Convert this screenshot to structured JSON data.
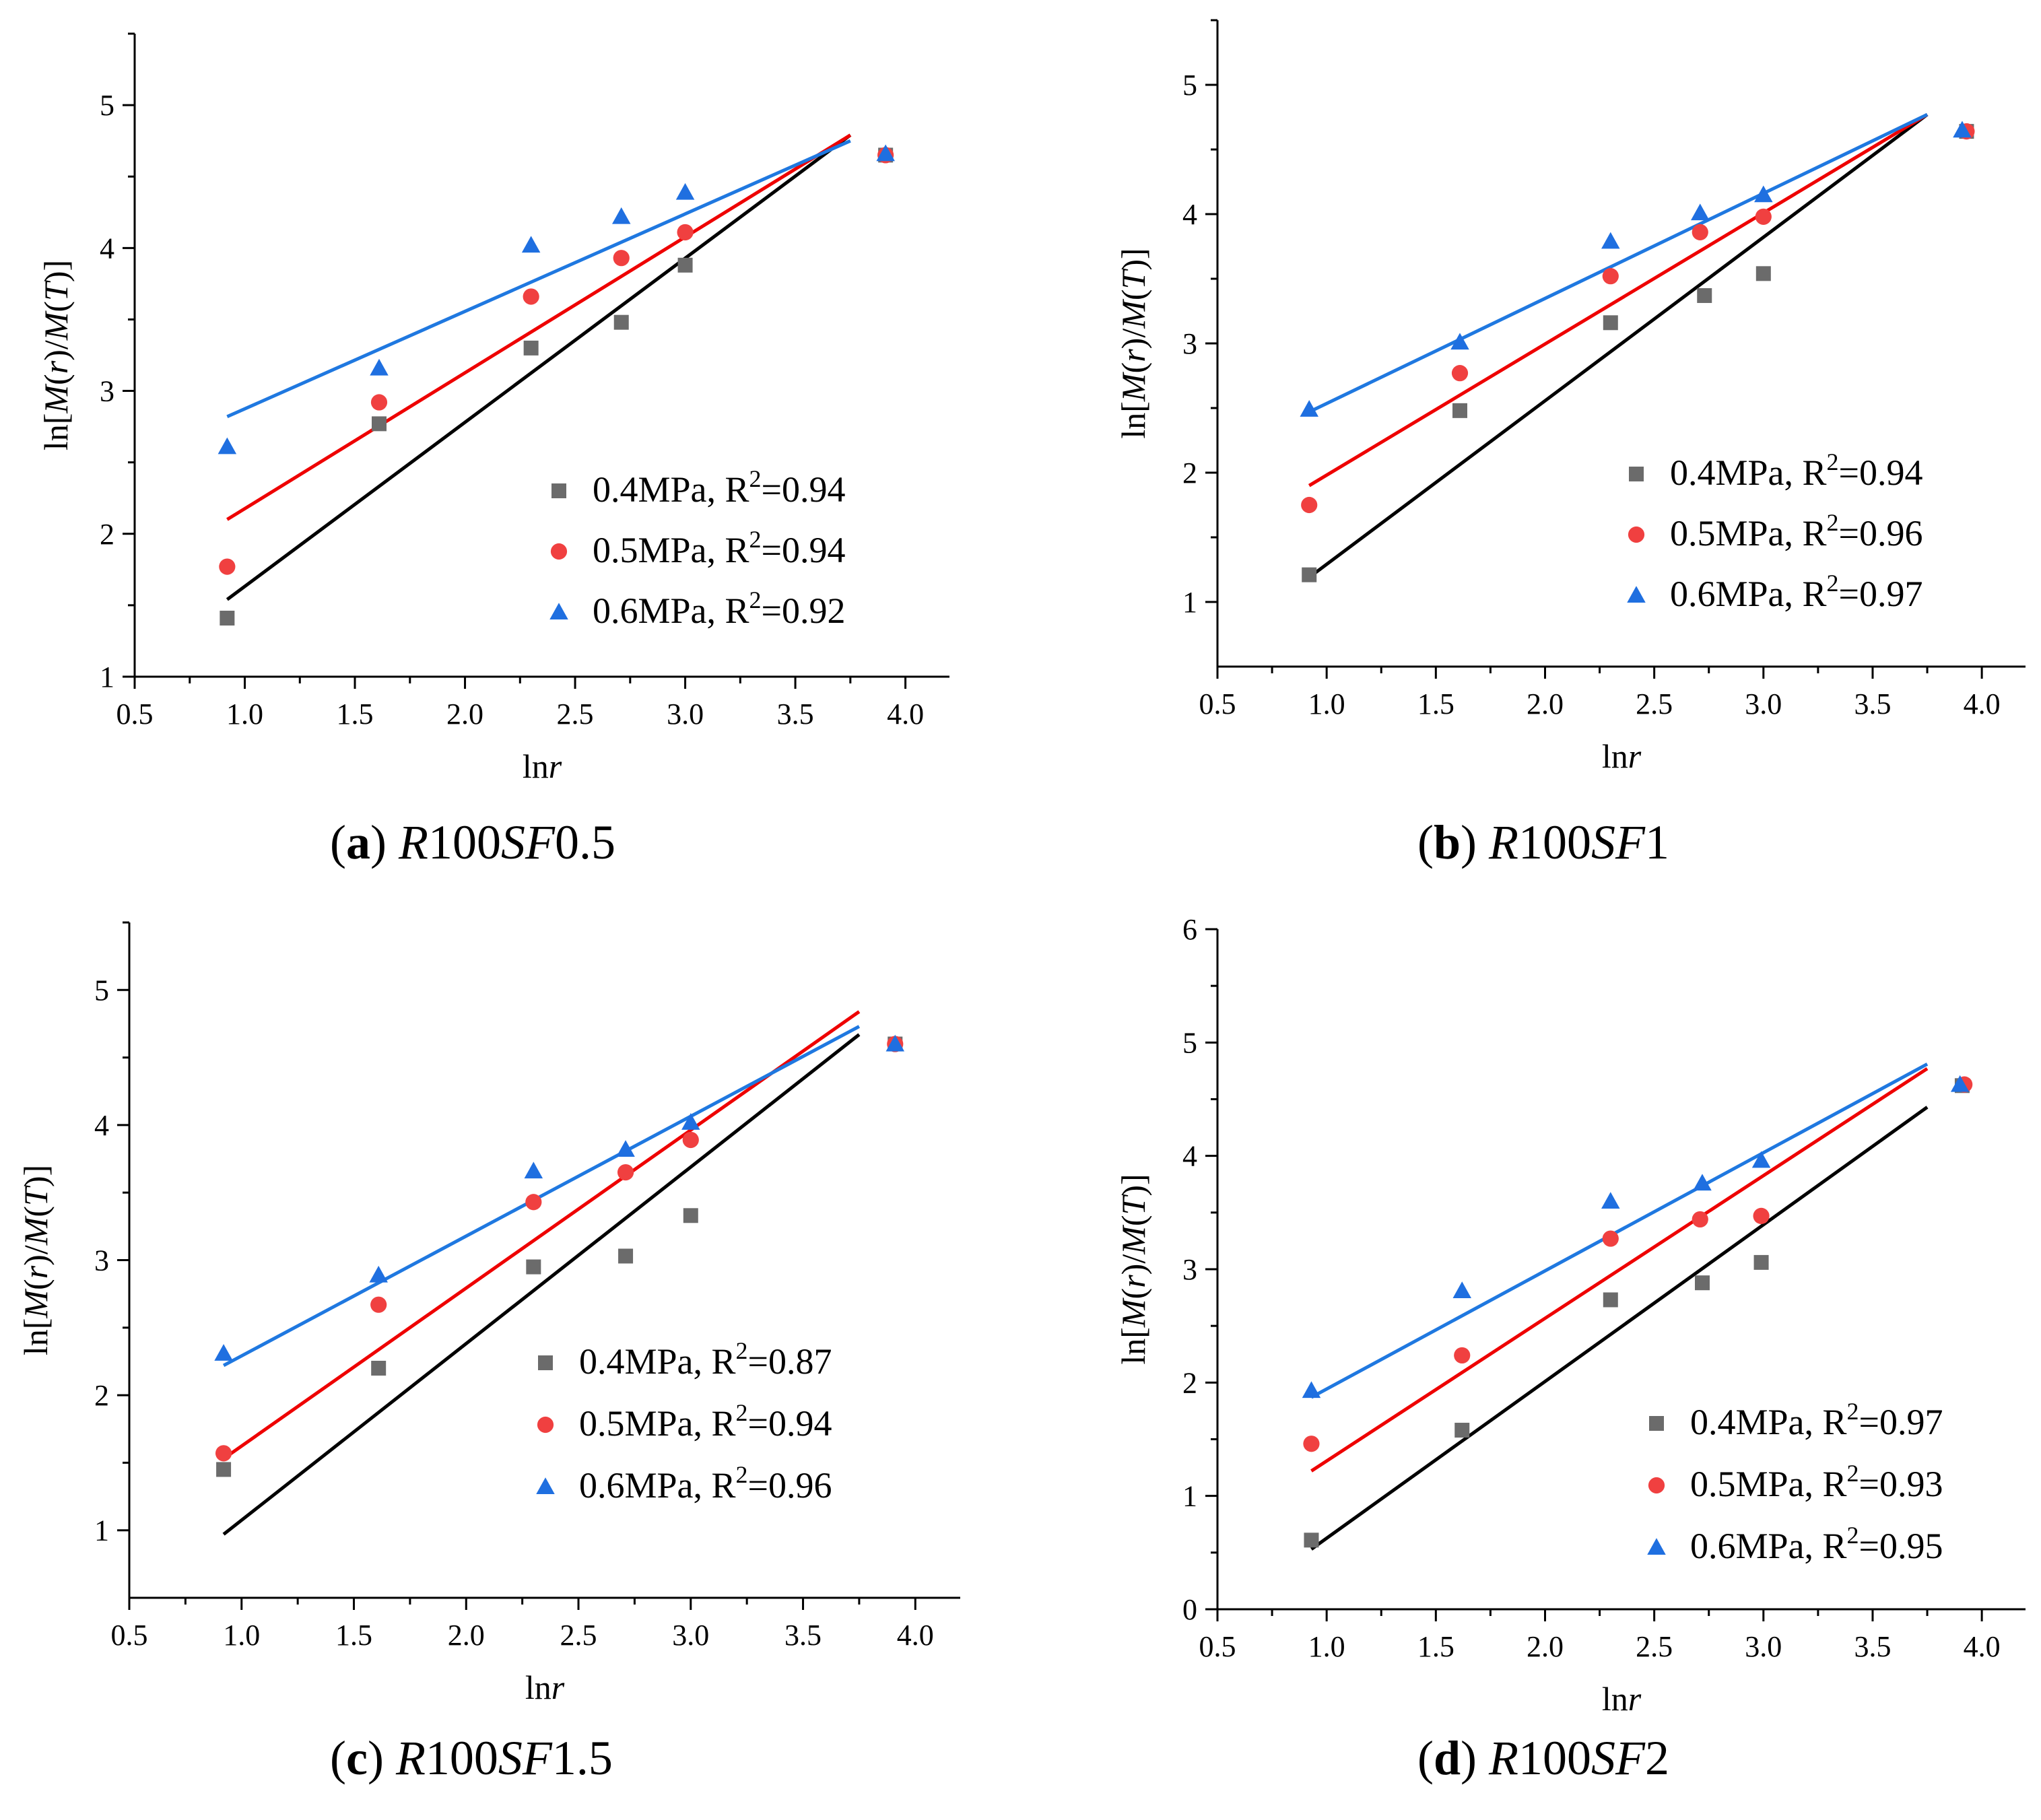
{
  "chart_data": [
    {
      "type": "scatter",
      "caption": {
        "letter": "a",
        "prefix": "R",
        "mid": "100",
        "sf": "SF",
        "num": "0.5"
      },
      "xlabel": {
        "pre": "ln",
        "var": "r"
      },
      "ylabel": {
        "pre": "ln[",
        "a": "M",
        "b": "(",
        "c": "r",
        "d": ")/",
        "e": "M",
        "f": "(",
        "g": "T",
        "h": ")]"
      },
      "xlim": [
        0.5,
        4.2
      ],
      "ylim": [
        1,
        5.5
      ],
      "x_ticks": [
        "0.5",
        "1.0",
        "1.5",
        "2.0",
        "2.5",
        "3.0",
        "3.5",
        "4.0"
      ],
      "y_ticks": [
        "1",
        "2",
        "3",
        "4",
        "5"
      ],
      "legend_position": "bottom-right",
      "series": [
        {
          "name": "0.4MPa",
          "r2": "0.94",
          "marker": "square",
          "color": "#6b6b6b",
          "line_color": "#000000",
          "x": [
            0.92,
            1.61,
            2.3,
            2.71,
            3.0,
            3.91
          ],
          "y": [
            1.41,
            2.77,
            3.3,
            3.48,
            3.88,
            4.65
          ],
          "fit": [
            [
              0.92,
              1.54
            ],
            [
              3.75,
              4.79
            ]
          ]
        },
        {
          "name": "0.5MPa",
          "r2": "0.94",
          "marker": "circle",
          "color": "#f04040",
          "line_color": "#ee0000",
          "x": [
            0.92,
            1.61,
            2.3,
            2.71,
            3.0,
            3.91
          ],
          "y": [
            1.77,
            2.92,
            3.66,
            3.93,
            4.11,
            4.65
          ],
          "fit": [
            [
              0.92,
              2.1
            ],
            [
              3.75,
              4.79
            ]
          ]
        },
        {
          "name": "0.6MPa",
          "r2": "0.92",
          "marker": "triangle",
          "color": "#1f6fe0",
          "line_color": "#1f78e0",
          "x": [
            0.92,
            1.61,
            2.3,
            2.71,
            3.0,
            3.91
          ],
          "y": [
            2.61,
            3.16,
            4.02,
            4.22,
            4.39,
            4.66
          ],
          "fit": [
            [
              0.92,
              2.82
            ],
            [
              3.75,
              4.75
            ]
          ]
        }
      ]
    },
    {
      "type": "scatter",
      "caption": {
        "letter": "b",
        "prefix": "R",
        "mid": "100",
        "sf": "SF",
        "num": "1"
      },
      "xlabel": {
        "pre": "ln",
        "var": "r"
      },
      "ylabel": {
        "pre": "ln[",
        "a": "M",
        "b": "(",
        "c": "r",
        "d": ")/",
        "e": "M",
        "f": "(",
        "g": "T",
        "h": ")]"
      },
      "xlim": [
        0.5,
        4.2
      ],
      "ylim": [
        0.5,
        5.5
      ],
      "x_ticks": [
        "0.5",
        "1.0",
        "1.5",
        "2.0",
        "2.5",
        "3.0",
        "3.5",
        "4.0"
      ],
      "y_ticks": [
        "1",
        "2",
        "3",
        "4",
        "5"
      ],
      "legend_position": "bottom-right",
      "series": [
        {
          "name": "0.4MPa",
          "r2": "0.94",
          "marker": "square",
          "color": "#6b6b6b",
          "line_color": "#000000",
          "x": [
            0.92,
            1.61,
            2.3,
            2.73,
            3.0,
            3.93
          ],
          "y": [
            1.21,
            2.48,
            3.16,
            3.37,
            3.54,
            4.64
          ],
          "fit": [
            [
              0.92,
              1.19
            ],
            [
              3.75,
              4.77
            ]
          ]
        },
        {
          "name": "0.5MPa",
          "r2": "0.96",
          "marker": "circle",
          "color": "#f04040",
          "line_color": "#ee0000",
          "x": [
            0.92,
            1.61,
            2.3,
            2.71,
            3.0,
            3.93
          ],
          "y": [
            1.75,
            2.77,
            3.52,
            3.86,
            3.98,
            4.64
          ],
          "fit": [
            [
              0.92,
              1.9
            ],
            [
              3.75,
              4.77
            ]
          ]
        },
        {
          "name": "0.6MPa",
          "r2": "0.97",
          "marker": "triangle",
          "color": "#1f6fe0",
          "line_color": "#1f78e0",
          "x": [
            0.92,
            1.61,
            2.3,
            2.71,
            3.0,
            3.91
          ],
          "y": [
            2.49,
            3.01,
            3.79,
            4.01,
            4.15,
            4.65
          ],
          "fit": [
            [
              0.92,
              2.47
            ],
            [
              3.75,
              4.77
            ]
          ]
        }
      ]
    },
    {
      "type": "scatter",
      "caption": {
        "letter": "c",
        "prefix": "R",
        "mid": "100",
        "sf": "SF",
        "num": "1.5"
      },
      "xlabel": {
        "pre": "ln",
        "var": "r"
      },
      "ylabel": {
        "pre": "ln[",
        "a": "M",
        "b": "(",
        "c": "r",
        "d": ")/",
        "e": "M",
        "f": "(",
        "g": "T",
        "h": ")]"
      },
      "xlim": [
        0.5,
        4.2
      ],
      "ylim": [
        0.5,
        5.5
      ],
      "x_ticks": [
        "0.5",
        "1.0",
        "1.5",
        "2.0",
        "2.5",
        "3.0",
        "3.5",
        "4.0"
      ],
      "y_ticks": [
        "1",
        "2",
        "3",
        "4",
        "5"
      ],
      "legend_position": "bottom-right",
      "series": [
        {
          "name": "0.4MPa",
          "r2": "0.87",
          "marker": "square",
          "color": "#6b6b6b",
          "line_color": "#000000",
          "x": [
            0.92,
            1.61,
            2.3,
            2.71,
            3.0,
            3.91
          ],
          "y": [
            1.45,
            2.2,
            2.95,
            3.03,
            3.33,
            4.6
          ],
          "fit": [
            [
              0.92,
              0.97
            ],
            [
              3.75,
              4.67
            ]
          ]
        },
        {
          "name": "0.5MPa",
          "r2": "0.94",
          "marker": "circle",
          "color": "#f04040",
          "line_color": "#ee0000",
          "x": [
            0.92,
            1.61,
            2.3,
            2.71,
            3.0,
            3.91
          ],
          "y": [
            1.57,
            2.67,
            3.43,
            3.65,
            3.89,
            4.6
          ],
          "fit": [
            [
              0.92,
              1.53
            ],
            [
              3.75,
              4.84
            ]
          ]
        },
        {
          "name": "0.6MPa",
          "r2": "0.96",
          "marker": "triangle",
          "color": "#1f6fe0",
          "line_color": "#1f78e0",
          "x": [
            0.92,
            1.61,
            2.3,
            2.71,
            3.0,
            3.91
          ],
          "y": [
            2.31,
            2.89,
            3.66,
            3.82,
            4.02,
            4.6
          ],
          "fit": [
            [
              0.92,
              2.22
            ],
            [
              3.75,
              4.73
            ]
          ]
        }
      ]
    },
    {
      "type": "scatter",
      "caption": {
        "letter": "d",
        "prefix": "R",
        "mid": "100",
        "sf": "SF",
        "num": "2"
      },
      "xlabel": {
        "pre": "ln",
        "var": "r"
      },
      "ylabel": {
        "pre": "ln[",
        "a": "M",
        "b": "(",
        "c": "r",
        "d": ")/",
        "e": "M",
        "f": "(",
        "g": "T",
        "h": ")]"
      },
      "xlim": [
        0.5,
        4.2
      ],
      "ylim": [
        0,
        6
      ],
      "x_ticks": [
        "0.5",
        "1.0",
        "1.5",
        "2.0",
        "2.5",
        "3.0",
        "3.5",
        "4.0"
      ],
      "y_ticks": [
        "0",
        "1",
        "2",
        "3",
        "4",
        "5",
        "6"
      ],
      "legend_position": "bottom-right",
      "series": [
        {
          "name": "0.4MPa",
          "r2": "0.97",
          "marker": "square",
          "color": "#6b6b6b",
          "line_color": "#000000",
          "x": [
            0.93,
            1.62,
            2.3,
            2.72,
            2.99,
            3.91
          ],
          "y": [
            0.61,
            1.58,
            2.73,
            2.88,
            3.06,
            4.62
          ],
          "fit": [
            [
              0.93,
              0.53
            ],
            [
              3.75,
              4.43
            ]
          ]
        },
        {
          "name": "0.5MPa",
          "r2": "0.93",
          "marker": "circle",
          "color": "#f04040",
          "line_color": "#ee0000",
          "x": [
            0.93,
            1.62,
            2.3,
            2.71,
            2.99,
            3.92
          ],
          "y": [
            1.46,
            2.24,
            3.27,
            3.44,
            3.47,
            4.63
          ],
          "fit": [
            [
              0.93,
              1.22
            ],
            [
              3.75,
              4.77
            ]
          ]
        },
        {
          "name": "0.6MPa",
          "r2": "0.95",
          "marker": "triangle",
          "color": "#1f6fe0",
          "line_color": "#1f78e0",
          "x": [
            0.93,
            1.62,
            2.3,
            2.72,
            2.99,
            3.9
          ],
          "y": [
            1.93,
            2.81,
            3.6,
            3.76,
            3.96,
            4.63
          ],
          "fit": [
            [
              0.93,
              1.87
            ],
            [
              3.75,
              4.81
            ]
          ]
        }
      ]
    }
  ]
}
